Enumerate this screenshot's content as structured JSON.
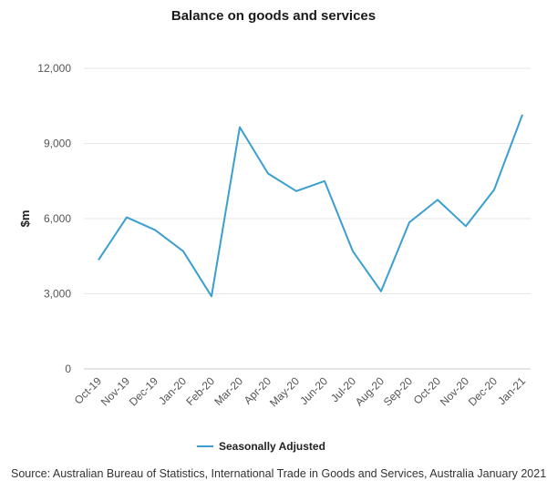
{
  "chart_data": {
    "type": "line",
    "title": "Balance on goods and services",
    "ylabel": "$m",
    "xlabel": "",
    "categories": [
      "Oct-19",
      "Nov-19",
      "Dec-19",
      "Jan-20",
      "Feb-20",
      "Mar-20",
      "Apr-20",
      "May-20",
      "Jun-20",
      "Jul-20",
      "Aug-20",
      "Sep-20",
      "Oct-20",
      "Nov-20",
      "Dec-20",
      "Jan-21"
    ],
    "series": [
      {
        "name": "Seasonally Adjusted",
        "color": "#3a9fd0",
        "values": [
          4350,
          6050,
          5550,
          4700,
          2900,
          9650,
          7800,
          7100,
          7500,
          4700,
          3100,
          5850,
          6750,
          5700,
          7150,
          10150
        ]
      }
    ],
    "y_ticks": [
      "12,000",
      "9,000",
      "6,000",
      "3,000",
      "0"
    ],
    "y_tick_values": [
      12000,
      9000,
      6000,
      3000,
      0
    ],
    "ylim": [
      0,
      12000
    ],
    "grid": "horizontal",
    "legend_position": "bottom"
  },
  "source": "Source: Australian Bureau of Statistics, International Trade in Goods and Services, Australia January 2021"
}
